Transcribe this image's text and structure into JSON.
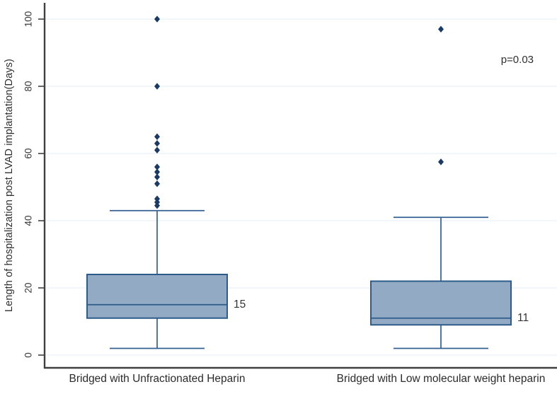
{
  "chart_data": {
    "type": "boxplot",
    "title": "",
    "xlabel": "",
    "ylabel": "Length of hospitalization post LVAD implantation(Days)",
    "ylim": [
      0,
      100
    ],
    "yticks": [
      0,
      20,
      40,
      60,
      80,
      100
    ],
    "grid": "horizontal",
    "legend": "none",
    "annotation": {
      "text": "p=0.03"
    },
    "groups": [
      {
        "label": "Bridged with Unfractionated Heparin",
        "whisker_low": 2,
        "q1": 11,
        "median": 15,
        "q3": 24,
        "whisker_high": 43,
        "median_label": "15",
        "outliers": [
          44.5,
          45.5,
          46.5,
          51,
          53,
          54.5,
          56,
          61,
          63,
          65,
          80,
          100
        ]
      },
      {
        "label": "Bridged with Low molecular weight heparin",
        "whisker_low": 2,
        "q1": 9,
        "median": 11,
        "q3": 22,
        "whisker_high": 41,
        "median_label": "11",
        "outliers": [
          57.5,
          97
        ]
      }
    ],
    "colors": {
      "box_fill": "#92aac3",
      "box_stroke": "#2e5c8a",
      "whisker": "#336090",
      "outlier": "#1a3a64",
      "grid": "#e8f1f8",
      "axis": "#404040",
      "tick_text": "#3a3a3a"
    }
  }
}
